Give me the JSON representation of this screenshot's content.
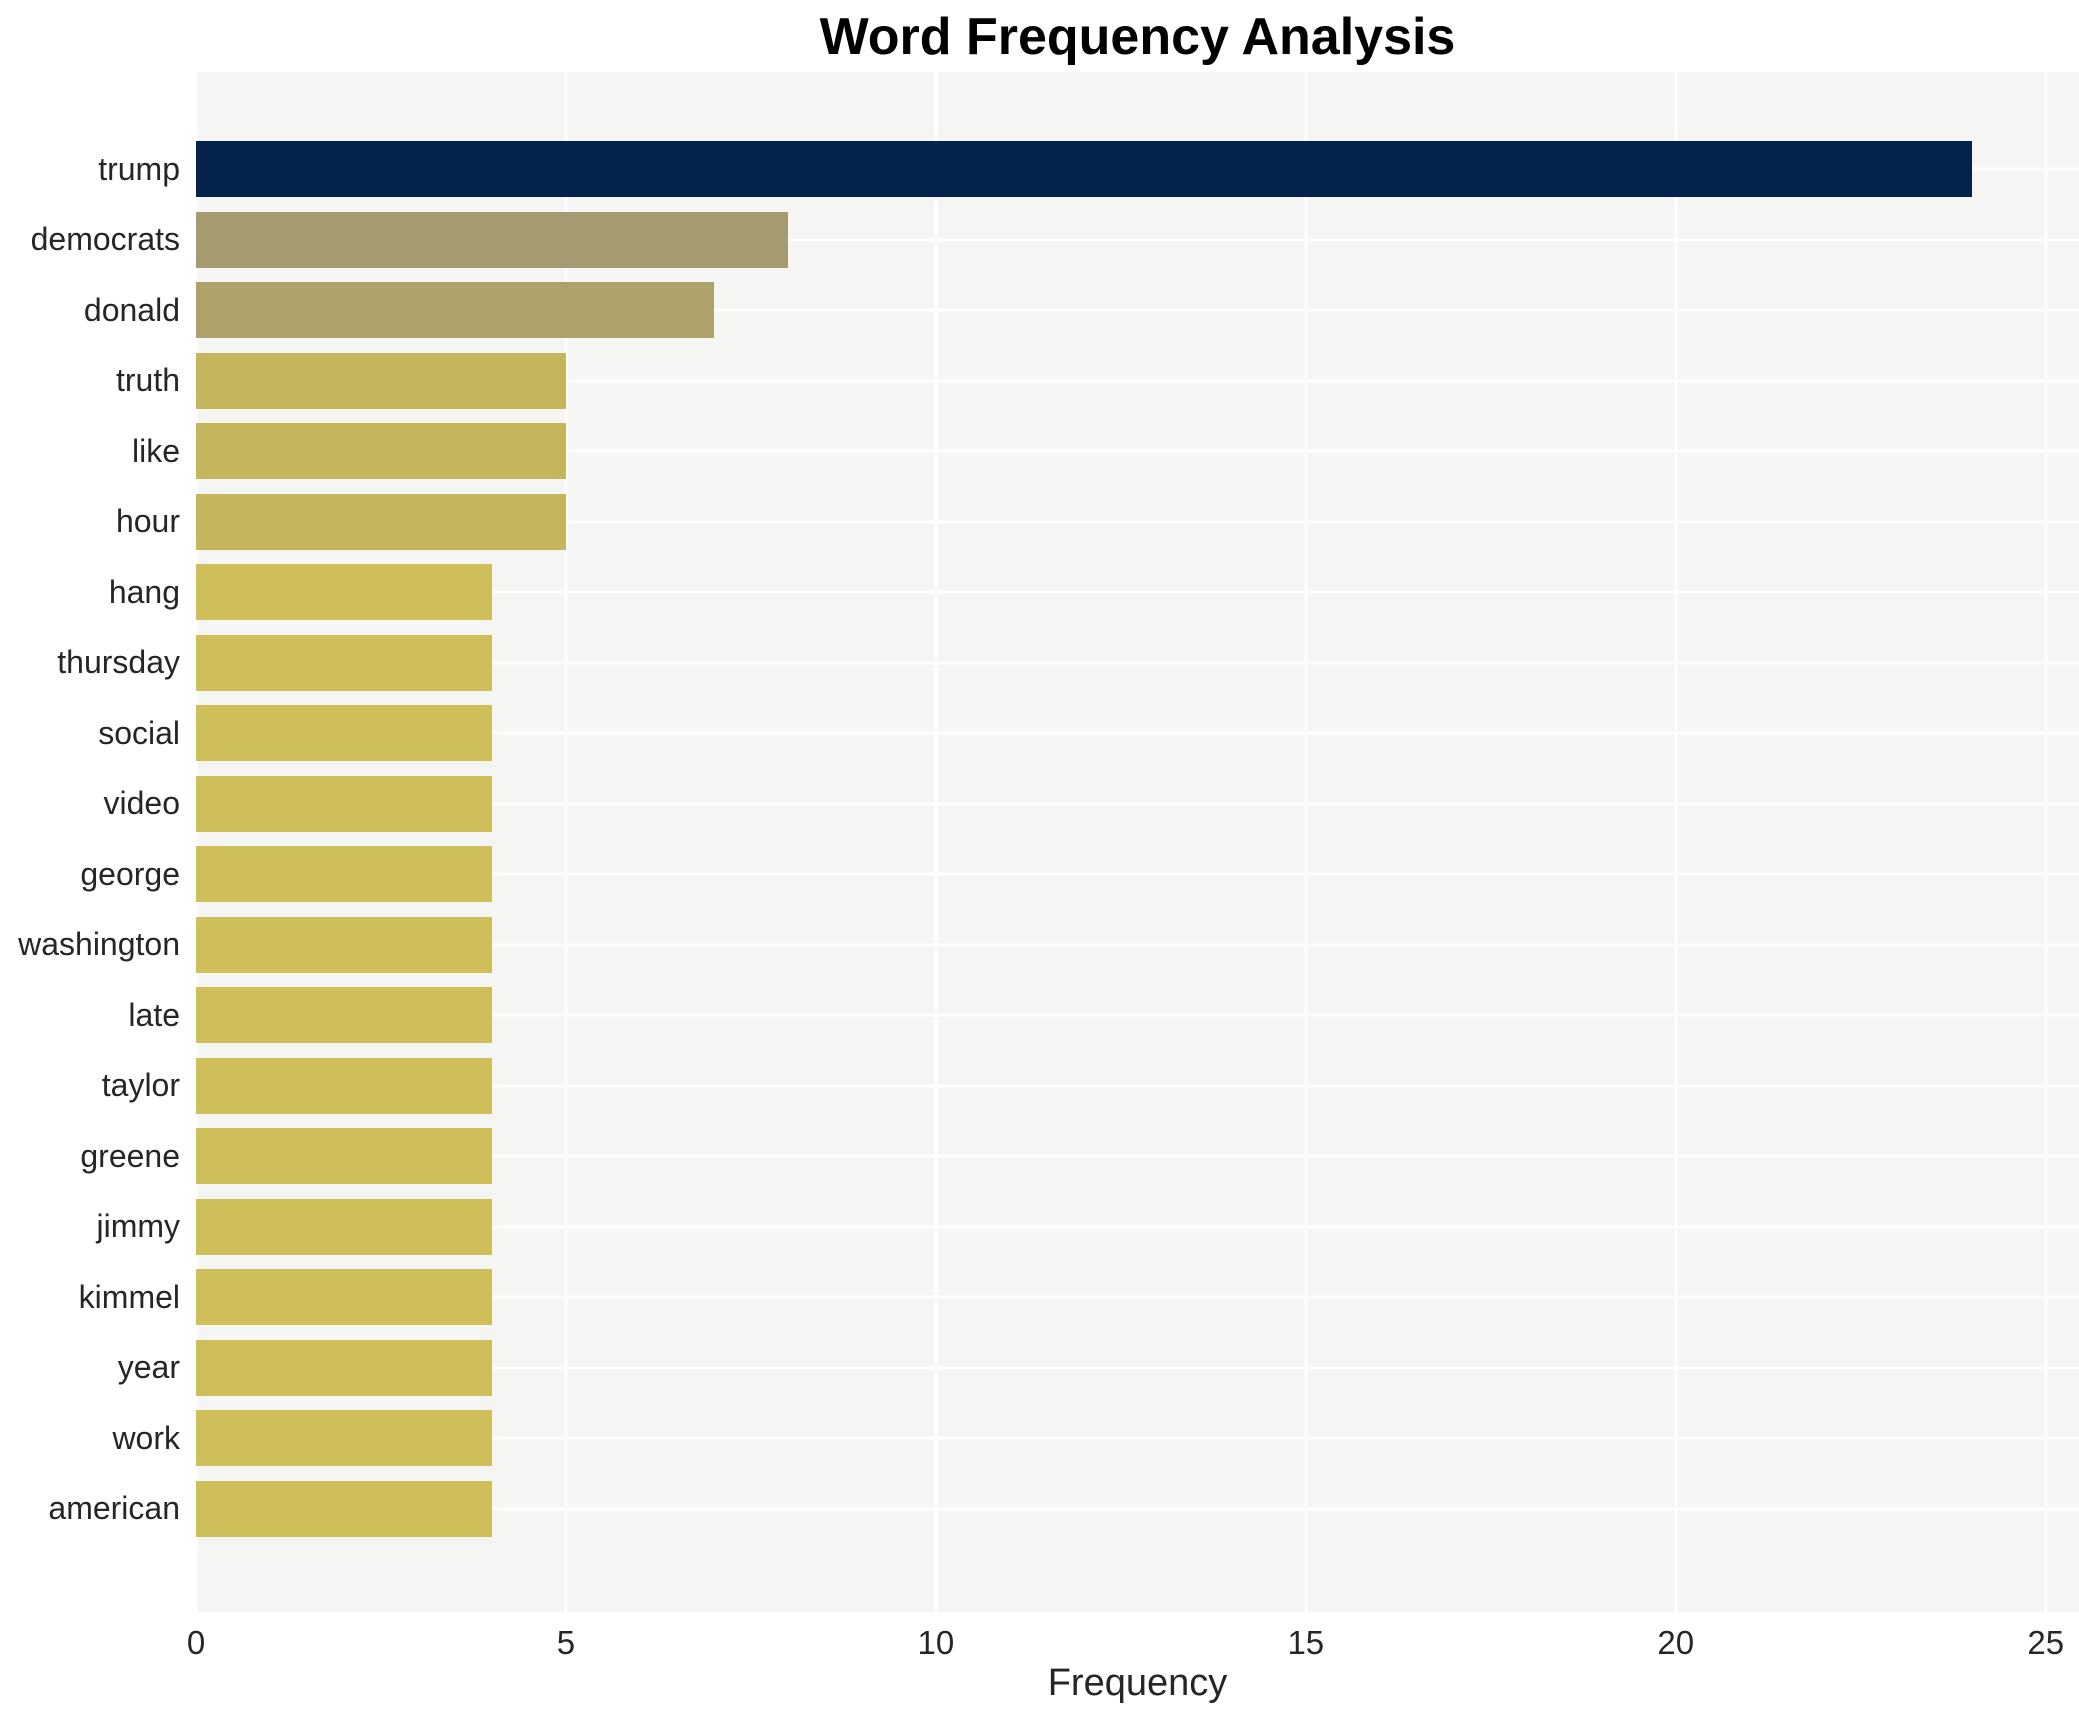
{
  "chart_data": {
    "type": "bar",
    "orientation": "horizontal",
    "title": "Word Frequency Analysis",
    "xlabel": "Frequency",
    "ylabel": "",
    "categories": [
      "trump",
      "democrats",
      "donald",
      "truth",
      "like",
      "hour",
      "hang",
      "thursday",
      "social",
      "video",
      "george",
      "washington",
      "late",
      "taylor",
      "greene",
      "jimmy",
      "kimmel",
      "year",
      "work",
      "american"
    ],
    "values": [
      24,
      8,
      7,
      5,
      5,
      5,
      4,
      4,
      4,
      4,
      4,
      4,
      4,
      4,
      4,
      4,
      4,
      4,
      4,
      4
    ],
    "colors": [
      "#03234d",
      "#a49b70",
      "#aca26a",
      "#c5b65e",
      "#c5b65e",
      "#c5b65e",
      "#cfbf5b",
      "#cfbf5b",
      "#cfbf5b",
      "#cfbf5b",
      "#cfbf5b",
      "#cfbf5b",
      "#cfbf5b",
      "#cfbf5b",
      "#cfbf5b",
      "#cfbf5b",
      "#cfbf5b",
      "#cfbf5b",
      "#cfbf5b",
      "#cfbf5b"
    ],
    "xlim": [
      0,
      25.45
    ],
    "xticks": [
      0,
      5,
      10,
      15,
      20,
      25
    ],
    "grid": true,
    "legend": false,
    "plot_background": "#f5f5f4",
    "grid_color": "#ffffff",
    "text_color": "#262626"
  }
}
